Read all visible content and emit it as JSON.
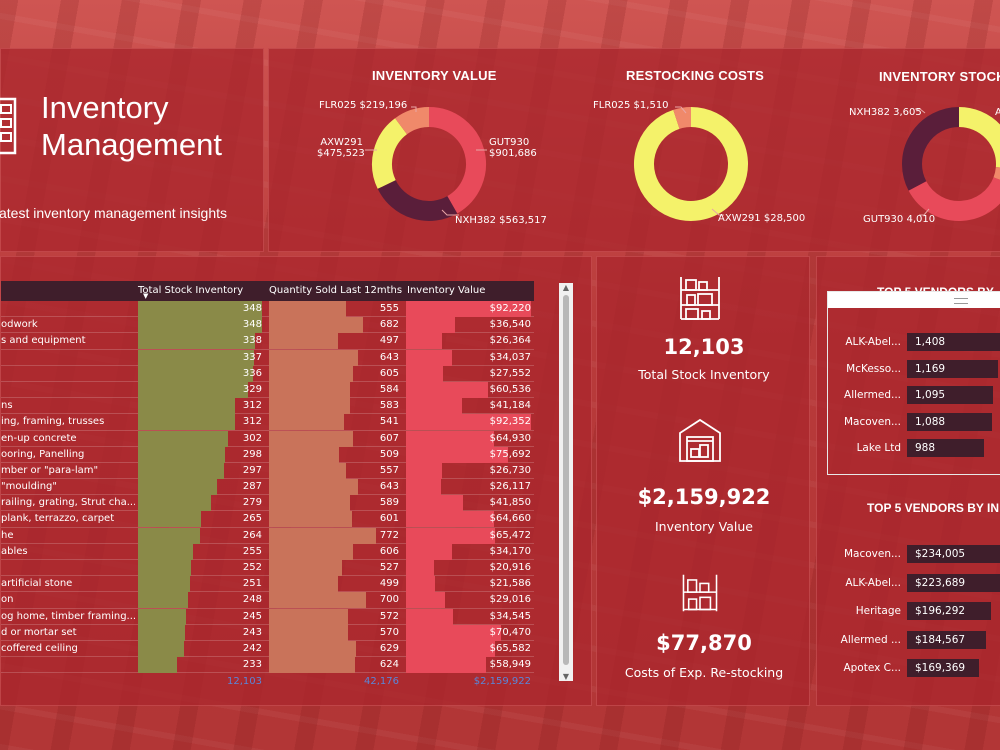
{
  "header": {
    "title_line1": "Inventory",
    "title_line2": "Management",
    "subtitle": "atest inventory management insights"
  },
  "donuts": [
    {
      "title": "INVENTORY VALUE",
      "segments": [
        {
          "label": "GUT930",
          "value": "$901,686",
          "num": 901686,
          "color": "#e84a5a"
        },
        {
          "label": "NXH382",
          "value": "$563,517",
          "num": 563517,
          "color": "#5a1e3a"
        },
        {
          "label": "AXW291",
          "value": "$475,523",
          "num": 475523,
          "color": "#f4f26a"
        },
        {
          "label": "FLR025",
          "value": "$219,196",
          "num": 219196,
          "color": "#f0896a"
        }
      ]
    },
    {
      "title": "RESTOCKING COSTS",
      "segments": [
        {
          "label": "AXW291",
          "value": "$28,500",
          "num": 28500,
          "color": "#f4f26a"
        },
        {
          "label": "FLR025",
          "value": "$1,510",
          "num": 1510,
          "color": "#f0896a"
        }
      ]
    },
    {
      "title": "INVENTORY STOCK U",
      "segments": [
        {
          "label": "A",
          "value": "",
          "num": 2900,
          "color": "#f4f26a"
        },
        {
          "label": "",
          "value": "",
          "num": 500,
          "color": "#f0896a"
        },
        {
          "label": "GUT930",
          "value": "4,010",
          "num": 4010,
          "color": "#e84a5a"
        },
        {
          "label": "NXH382",
          "value": "3,605",
          "num": 3605,
          "color": "#5a1e3a"
        }
      ]
    }
  ],
  "table": {
    "columns": [
      "Total Stock Inventory",
      "Quantity Sold Last 12mths",
      "Inventory Value"
    ],
    "rows": [
      {
        "name": "",
        "stock": 348,
        "sold": 555,
        "value": "$92,220",
        "v": 92220
      },
      {
        "name": "odwork",
        "stock": 348,
        "sold": 682,
        "value": "$36,540",
        "v": 36540
      },
      {
        "name": "s and equipment",
        "stock": 338,
        "sold": 497,
        "value": "$26,364",
        "v": 26364
      },
      {
        "name": "",
        "stock": 337,
        "sold": 643,
        "value": "$34,037",
        "v": 34037
      },
      {
        "name": "",
        "stock": 336,
        "sold": 605,
        "value": "$27,552",
        "v": 27552
      },
      {
        "name": "",
        "stock": 329,
        "sold": 584,
        "value": "$60,536",
        "v": 60536
      },
      {
        "name": "ns",
        "stock": 312,
        "sold": 583,
        "value": "$41,184",
        "v": 41184
      },
      {
        "name": "ing, framing, trusses",
        "stock": 312,
        "sold": 541,
        "value": "$92,352",
        "v": 92352
      },
      {
        "name": "en-up concrete",
        "stock": 302,
        "sold": 607,
        "value": "$64,930",
        "v": 64930
      },
      {
        "name": "ooring, Panelling",
        "stock": 298,
        "sold": 509,
        "value": "$75,692",
        "v": 75692
      },
      {
        "name": "mber or \"para-lam\"",
        "stock": 297,
        "sold": 557,
        "value": "$26,730",
        "v": 26730
      },
      {
        "name": "\"moulding\"",
        "stock": 287,
        "sold": 643,
        "value": "$26,117",
        "v": 26117
      },
      {
        "name": "railing, grating, Strut cha...",
        "stock": 279,
        "sold": 589,
        "value": "$41,850",
        "v": 41850
      },
      {
        "name": "plank, terrazzo, carpet",
        "stock": 265,
        "sold": 601,
        "value": "$64,660",
        "v": 64660
      },
      {
        "name": "he",
        "stock": 264,
        "sold": 772,
        "value": "$65,472",
        "v": 65472
      },
      {
        "name": "ables",
        "stock": 255,
        "sold": 606,
        "value": "$34,170",
        "v": 34170
      },
      {
        "name": "",
        "stock": 252,
        "sold": 527,
        "value": "$20,916",
        "v": 20916
      },
      {
        "name": "artificial stone",
        "stock": 251,
        "sold": 499,
        "value": "$21,586",
        "v": 21586
      },
      {
        "name": "on",
        "stock": 248,
        "sold": 700,
        "value": "$29,016",
        "v": 29016
      },
      {
        "name": "og home, timber framing...",
        "stock": 245,
        "sold": 572,
        "value": "$34,545",
        "v": 34545
      },
      {
        "name": "d or mortar set",
        "stock": 243,
        "sold": 570,
        "value": "$70,470",
        "v": 70470
      },
      {
        "name": " coffered ceiling",
        "stock": 242,
        "sold": 629,
        "value": "$65,582",
        "v": 65582
      },
      {
        "name": "",
        "stock": 233,
        "sold": 624,
        "value": "$58,949",
        "v": 58949
      }
    ],
    "totals": {
      "stock": "12,103",
      "sold": "42,176",
      "value": "$2,159,922"
    }
  },
  "kpis": [
    {
      "value": "12,103",
      "label": "Total Stock Inventory",
      "icon": "shelving-icon"
    },
    {
      "value": "$2,159,922",
      "label": "Inventory Value",
      "icon": "warehouse-icon"
    },
    {
      "value": "$77,870",
      "label": "Costs of Exp. Re-stocking",
      "icon": "restock-shelf-icon"
    }
  ],
  "vendors_units": {
    "title": "TOP 5 VENDORS BY",
    "items": [
      {
        "name": "ALK-Abel...",
        "value": "1,408",
        "v": 1408
      },
      {
        "name": "McKesso...",
        "value": "1,169",
        "v": 1169
      },
      {
        "name": "Allermed...",
        "value": "1,095",
        "v": 1095
      },
      {
        "name": "Macoven...",
        "value": "1,088",
        "v": 1088
      },
      {
        "name": "Lake Ltd",
        "value": "988",
        "v": 988
      }
    ]
  },
  "vendors_value": {
    "title": "TOP 5 VENDORS BY IN",
    "items": [
      {
        "name": "Macoven...",
        "value": "$234,005",
        "v": 234005
      },
      {
        "name": "ALK-Abel...",
        "value": "$223,689",
        "v": 223689
      },
      {
        "name": "Heritage",
        "value": "$196,292",
        "v": 196292
      },
      {
        "name": "Allermed ...",
        "value": "$184,567",
        "v": 184567
      },
      {
        "name": "Apotex C...",
        "value": "$169,369",
        "v": 169369
      }
    ]
  },
  "colors": {
    "stock_bar": "#8a8a48",
    "sold_bar": "#c9735a",
    "value_bar": "#e84a5a",
    "vendor_bar": "#3f1e2b"
  }
}
